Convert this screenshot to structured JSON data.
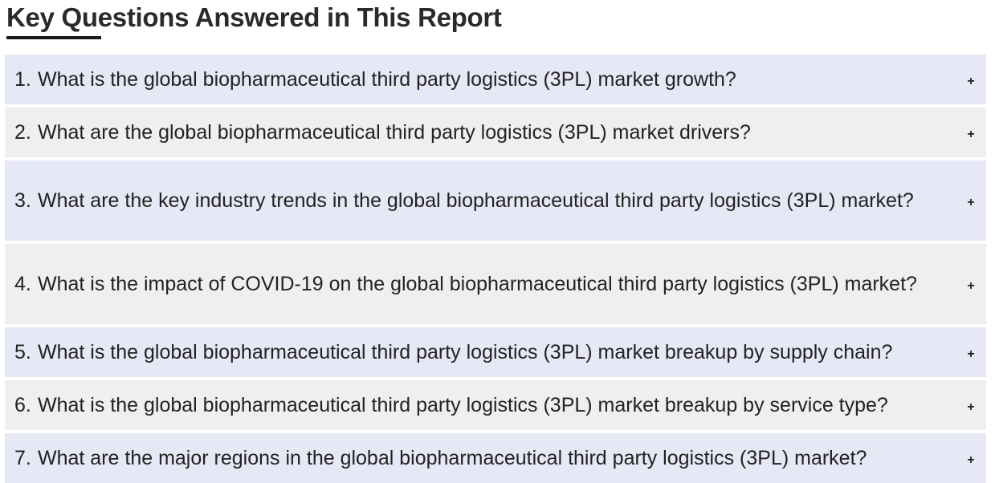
{
  "heading": "Key Questions Answered in This Report",
  "accordion": {
    "expand_icon": "+",
    "items": [
      {
        "number": "1.",
        "question": "What is the global biopharmaceutical third party logistics (3PL) market growth?"
      },
      {
        "number": "2.",
        "question": "What are the global biopharmaceutical third party logistics (3PL) market drivers?"
      },
      {
        "number": "3.",
        "question": "What are the key industry trends in the global biopharmaceutical third party logistics (3PL) market?"
      },
      {
        "number": "4.",
        "question": "What is the impact of COVID-19 on the global biopharmaceutical third party logistics (3PL) market?"
      },
      {
        "number": "5.",
        "question": "What is the global biopharmaceutical third party logistics (3PL) market breakup by supply chain?"
      },
      {
        "number": "6.",
        "question": "What is the global biopharmaceutical third party logistics (3PL) market breakup by service type?"
      },
      {
        "number": "7.",
        "question": "What are the major regions in the global biopharmaceutical third party logistics (3PL) market?"
      }
    ]
  },
  "colors": {
    "row_a": "#e6e8f5",
    "row_b": "#efefef",
    "text": "#222222"
  }
}
